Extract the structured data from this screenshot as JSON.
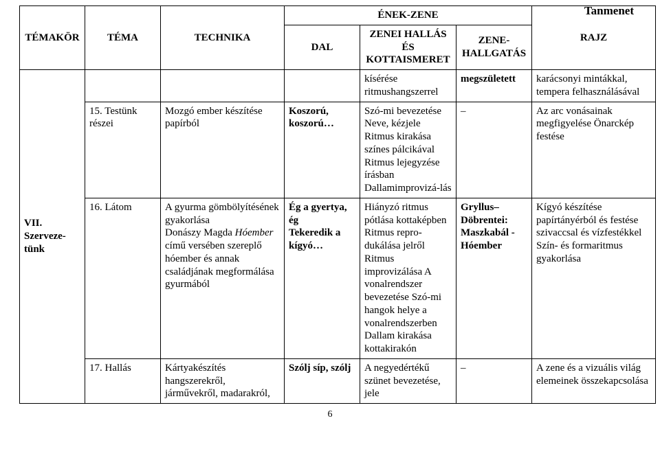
{
  "header_right": "Tanmenet",
  "page_number": "6",
  "columns": {
    "temakor": "TÉMAKÖR",
    "tema": "TÉMA",
    "technika": "TECHNIKA",
    "enekzene": "ÉNEK-ZENE",
    "dal": "DAL",
    "zenei_hallas": "ZENEI HALLÁS ÉS KOTTAISMERET",
    "zene_hallgatas": "ZENE-HALLGATÁS",
    "rajz": "RAJZ"
  },
  "cells": {
    "temakor_merged": "VII. Szerveze-tünk",
    "r1_zh": "kísérése ritmushangszerrel",
    "r1_zhall": "megszületett",
    "r1_rajz": "karácsonyi mintákkal, tempera felhasználásával",
    "r2_tema": "15. Testünk részei",
    "r2_technika": "Mozgó ember készítése papírból",
    "r2_dal": "Koszorú, koszorú…",
    "r2_zh": "Szó-mi bevezetése Neve, kézjele Ritmus kirakása színes pálcikával Ritmus lejegyzése írásban Dallamimprovizá-lás",
    "r2_zhall": "–",
    "r2_rajz": "Az arc vonásainak megfigyelése Önarckép festése",
    "r3_tema": "16. Látom",
    "r3_tech_plain1": "A gyurma gömbölyítésének gyakorlása",
    "r3_tech_line2a": "Donászy Magda ",
    "r3_tech_line2b_italic": "Hóember",
    "r3_tech_line2c": " című versében szereplő hóember és annak családjának megformálása gyurmából",
    "r3_dal_l1": "Ég a gyertya, ég",
    "r3_dal_l2": "Tekeredik a kígyó…",
    "r3_zh": "Hiányzó ritmus pótlása kottaképben Ritmus repro-dukálása jelről Ritmus improvizálása A vonalrendszer bevezetése Szó-mi hangok helye a vonalrendszerben Dallam kirakása kottakirakón",
    "r3_zhall_l1": "Gryllus– Döbrentei: Maszkabál - Hóember",
    "r3_rajz": "Kígyó készítése papírtányérból és festése szivaccsal és vízfestékkel Szín- és formaritmus gyakorlása",
    "r4_tema": "17. Hallás",
    "r4_technika": "Kártyakészítés hangszerekről, járművekről, madarakról,",
    "r4_dal": "Szólj síp, szólj",
    "r4_zh": "A negyedértékű szünet bevezetése, jele",
    "r4_zhall": "–",
    "r4_rajz": "A zene és a vizuális világ elemeinek összekapcsolása"
  }
}
